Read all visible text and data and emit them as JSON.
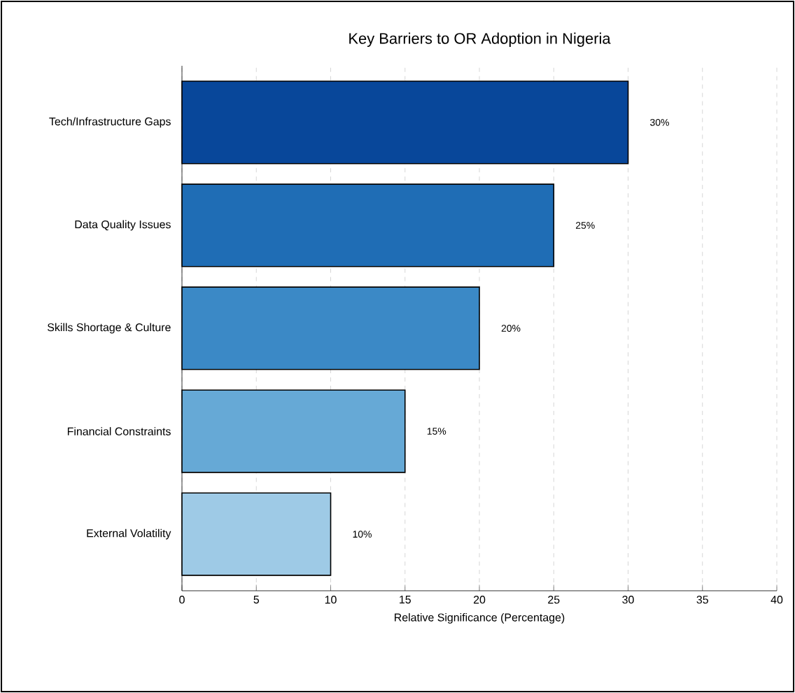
{
  "chart_data": {
    "type": "bar",
    "orientation": "horizontal",
    "title": "Key Barriers to OR Adoption in Nigeria",
    "xlabel": "Relative Significance (Percentage)",
    "categories": [
      "Tech/Infrastructure Gaps",
      "Data Quality Issues",
      "Skills Shortage & Culture",
      "Financial Constraints",
      "External Volatility"
    ],
    "values": [
      30,
      25,
      20,
      15,
      10
    ],
    "colors": [
      "#08479a",
      "#1f6db5",
      "#3b89c6",
      "#66a9d6",
      "#9ecae6"
    ],
    "value_labels": [
      "30%",
      "25%",
      "20%",
      "15%",
      "10%"
    ],
    "xlim": [
      0,
      40
    ],
    "xticks": [
      0,
      5,
      10,
      15,
      20,
      25,
      30,
      35,
      40
    ],
    "grid": "x"
  }
}
